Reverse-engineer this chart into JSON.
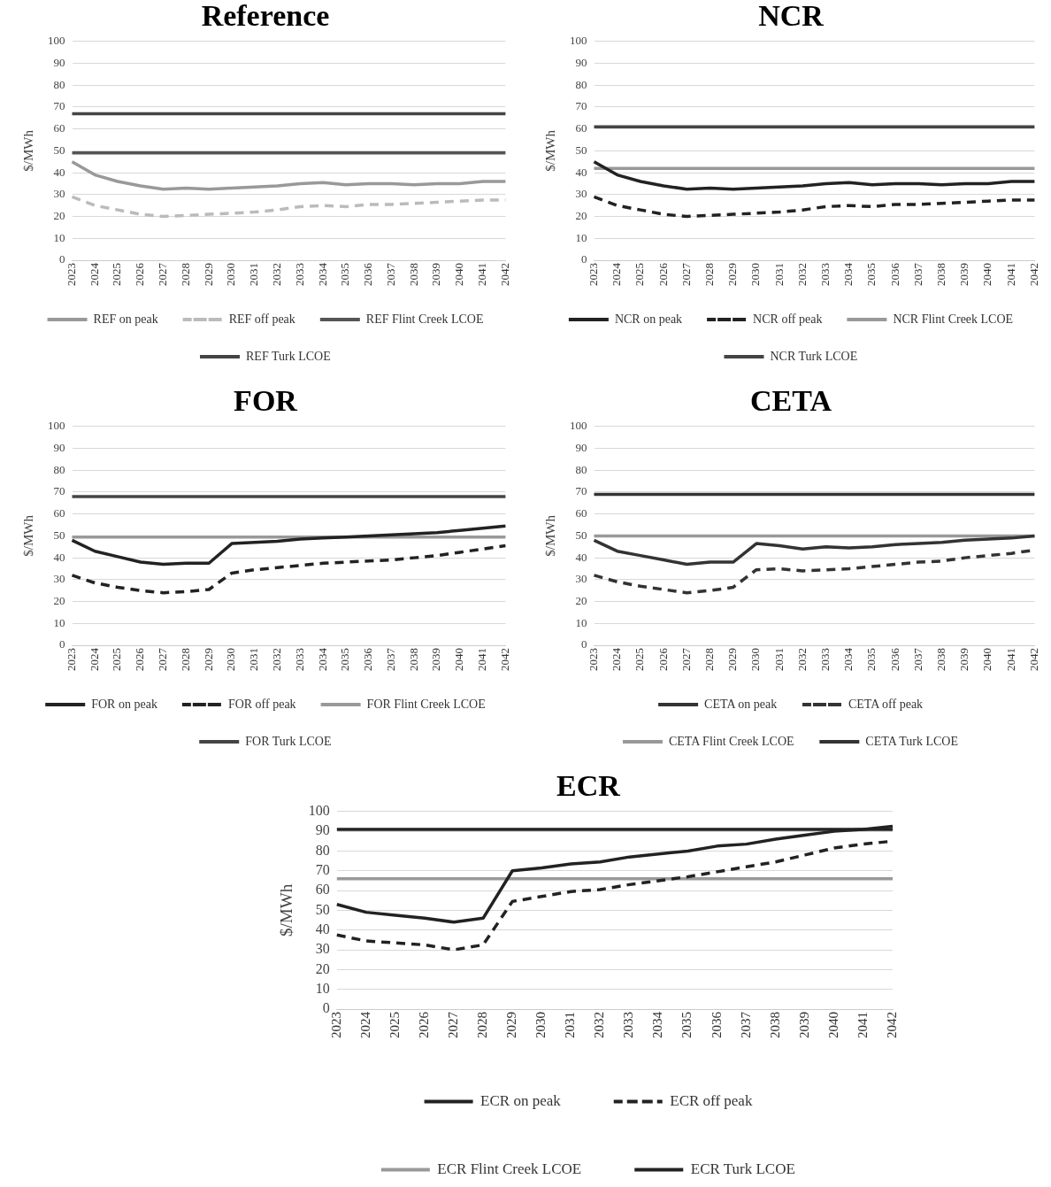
{
  "chart_data": [
    {
      "type": "line",
      "title": "Reference",
      "ylabel": "$/MWh",
      "categories": [
        "2023",
        "2024",
        "2025",
        "2026",
        "2027",
        "2028",
        "2029",
        "2030",
        "2031",
        "2032",
        "2033",
        "2034",
        "2035",
        "2036",
        "2037",
        "2038",
        "2039",
        "2040",
        "2041",
        "2042"
      ],
      "ylim": [
        0,
        100
      ],
      "yticks": [
        0,
        10,
        20,
        30,
        40,
        50,
        60,
        70,
        80,
        90,
        100
      ],
      "grid": "y",
      "legend": "bottom",
      "marker": "none",
      "series": [
        {
          "name": "REF on peak",
          "color": "#999999",
          "line_style": "solid",
          "values": [
            45,
            39,
            36,
            34,
            32.5,
            33,
            32.5,
            33,
            33.5,
            34,
            35,
            35.5,
            34.5,
            35,
            35,
            34.5,
            35,
            35,
            36,
            36
          ]
        },
        {
          "name": "REF off peak",
          "color": "#bbbbbb",
          "line_style": "dashed",
          "values": [
            29,
            25,
            23,
            21,
            20,
            20.5,
            21,
            21.5,
            22,
            23,
            24.5,
            25,
            24.5,
            25.5,
            25.5,
            26,
            26.5,
            27,
            27.5,
            27.5
          ]
        },
        {
          "name": "REF Flint Creek LCOE",
          "color": "#555555",
          "line_style": "solid",
          "values": [
            49,
            49,
            49,
            49,
            49,
            49,
            49,
            49,
            49,
            49,
            49,
            49,
            49,
            49,
            49,
            49,
            49,
            49,
            49,
            49
          ]
        },
        {
          "name": "REF Turk LCOE",
          "color": "#444444",
          "line_style": "solid",
          "values": [
            67,
            67,
            67,
            67,
            67,
            67,
            67,
            67,
            67,
            67,
            67,
            67,
            67,
            67,
            67,
            67,
            67,
            67,
            67,
            67
          ]
        }
      ]
    },
    {
      "type": "line",
      "title": "NCR",
      "ylabel": "$/MWh",
      "categories": [
        "2023",
        "2024",
        "2025",
        "2026",
        "2027",
        "2028",
        "2029",
        "2030",
        "2031",
        "2032",
        "2033",
        "2034",
        "2035",
        "2036",
        "2037",
        "2038",
        "2039",
        "2040",
        "2041",
        "2042"
      ],
      "ylim": [
        0,
        100
      ],
      "yticks": [
        0,
        10,
        20,
        30,
        40,
        50,
        60,
        70,
        80,
        90,
        100
      ],
      "grid": "y",
      "legend": "bottom",
      "marker": "none",
      "series": [
        {
          "name": "NCR on peak",
          "color": "#222222",
          "line_style": "solid",
          "values": [
            45,
            39,
            36,
            34,
            32.5,
            33,
            32.5,
            33,
            33.5,
            34,
            35,
            35.5,
            34.5,
            35,
            35,
            34.5,
            35,
            35,
            36,
            36
          ]
        },
        {
          "name": "NCR off peak",
          "color": "#222222",
          "line_style": "dashed",
          "values": [
            29,
            25,
            23,
            21,
            20,
            20.5,
            21,
            21.5,
            22,
            23,
            24.5,
            25,
            24.5,
            25.5,
            25.5,
            26,
            26.5,
            27,
            27.5,
            27.5
          ]
        },
        {
          "name": "NCR Flint Creek LCOE",
          "color": "#999999",
          "line_style": "solid",
          "values": [
            42,
            42,
            42,
            42,
            42,
            42,
            42,
            42,
            42,
            42,
            42,
            42,
            42,
            42,
            42,
            42,
            42,
            42,
            42,
            42
          ]
        },
        {
          "name": "NCR Turk LCOE",
          "color": "#444444",
          "line_style": "solid",
          "values": [
            61,
            61,
            61,
            61,
            61,
            61,
            61,
            61,
            61,
            61,
            61,
            61,
            61,
            61,
            61,
            61,
            61,
            61,
            61,
            61
          ]
        }
      ]
    },
    {
      "type": "line",
      "title": "FOR",
      "ylabel": "$/MWh",
      "categories": [
        "2023",
        "2024",
        "2025",
        "2026",
        "2027",
        "2028",
        "2029",
        "2030",
        "2031",
        "2032",
        "2033",
        "2034",
        "2035",
        "2036",
        "2037",
        "2038",
        "2039",
        "2040",
        "2041",
        "2042"
      ],
      "ylim": [
        0,
        100
      ],
      "yticks": [
        0,
        10,
        20,
        30,
        40,
        50,
        60,
        70,
        80,
        90,
        100
      ],
      "grid": "y",
      "legend": "bottom",
      "marker": "none",
      "series": [
        {
          "name": "FOR on peak",
          "color": "#222222",
          "line_style": "solid",
          "values": [
            48,
            43,
            40.5,
            38,
            37,
            37.5,
            37.5,
            46.5,
            47,
            47.5,
            48.5,
            49,
            49.5,
            50,
            50.5,
            51,
            51.5,
            52.5,
            53.5,
            54.5
          ]
        },
        {
          "name": "FOR off peak",
          "color": "#222222",
          "line_style": "dashed",
          "values": [
            32,
            28.5,
            26.5,
            25,
            24,
            24.5,
            25.5,
            33,
            34.5,
            35.5,
            36.5,
            37.5,
            38,
            38.5,
            39,
            40,
            41,
            42.5,
            44,
            45.5
          ]
        },
        {
          "name": "FOR Flint Creek LCOE",
          "color": "#999999",
          "line_style": "solid",
          "values": [
            49.5,
            49.5,
            49.5,
            49.5,
            49.5,
            49.5,
            49.5,
            49.5,
            49.5,
            49.5,
            49.5,
            49.5,
            49.5,
            49.5,
            49.5,
            49.5,
            49.5,
            49.5,
            49.5,
            49.5
          ]
        },
        {
          "name": "FOR Turk LCOE",
          "color": "#444444",
          "line_style": "solid",
          "values": [
            68,
            68,
            68,
            68,
            68,
            68,
            68,
            68,
            68,
            68,
            68,
            68,
            68,
            68,
            68,
            68,
            68,
            68,
            68,
            68
          ]
        }
      ]
    },
    {
      "type": "line",
      "title": "CETA",
      "ylabel": "$/MWh",
      "categories": [
        "2023",
        "2024",
        "2025",
        "2026",
        "2027",
        "2028",
        "2029",
        "2030",
        "2031",
        "2032",
        "2033",
        "2034",
        "2035",
        "2036",
        "2037",
        "2038",
        "2039",
        "2040",
        "2041",
        "2042"
      ],
      "ylim": [
        0,
        100
      ],
      "yticks": [
        0,
        10,
        20,
        30,
        40,
        50,
        60,
        70,
        80,
        90,
        100
      ],
      "grid": "y",
      "legend": "bottom",
      "marker": "none",
      "series": [
        {
          "name": "CETA on peak",
          "color": "#333333",
          "line_style": "solid",
          "values": [
            48,
            43,
            41,
            39,
            37,
            38,
            38,
            46.5,
            45.5,
            44,
            45,
            44.5,
            45,
            46,
            46.5,
            47,
            48,
            48.5,
            49,
            50
          ]
        },
        {
          "name": "CETA off peak",
          "color": "#333333",
          "line_style": "dashed",
          "values": [
            32,
            29,
            27,
            25.5,
            24,
            25,
            26.5,
            34.5,
            35,
            34,
            34.5,
            35,
            36,
            37,
            38,
            38.5,
            40,
            41,
            42,
            43.5
          ]
        },
        {
          "name": "CETA Flint Creek LCOE",
          "color": "#999999",
          "line_style": "solid",
          "values": [
            50,
            50,
            50,
            50,
            50,
            50,
            50,
            50,
            50,
            50,
            50,
            50,
            50,
            50,
            50,
            50,
            50,
            50,
            50,
            50
          ]
        },
        {
          "name": "CETA Turk LCOE",
          "color": "#333333",
          "line_style": "solid",
          "values": [
            69,
            69,
            69,
            69,
            69,
            69,
            69,
            69,
            69,
            69,
            69,
            69,
            69,
            69,
            69,
            69,
            69,
            69,
            69,
            69
          ]
        }
      ]
    },
    {
      "type": "line",
      "title": "ECR",
      "ylabel": "$/MWh",
      "categories": [
        "2023",
        "2024",
        "2025",
        "2026",
        "2027",
        "2028",
        "2029",
        "2030",
        "2031",
        "2032",
        "2033",
        "2034",
        "2035",
        "2036",
        "2037",
        "2038",
        "2039",
        "2040",
        "2041",
        "2042"
      ],
      "ylim": [
        0,
        100
      ],
      "yticks": [
        0,
        10,
        20,
        30,
        40,
        50,
        60,
        70,
        80,
        90,
        100
      ],
      "grid": "y",
      "legend": "bottom",
      "marker": "none",
      "series": [
        {
          "name": "ECR on peak",
          "color": "#222222",
          "line_style": "solid",
          "values": [
            53,
            49,
            47.5,
            46,
            44,
            46,
            70,
            71.5,
            73.5,
            74.5,
            77,
            78.5,
            80,
            82.5,
            83.5,
            86,
            88,
            90,
            91,
            92.5
          ]
        },
        {
          "name": "ECR off peak",
          "color": "#222222",
          "line_style": "dashed",
          "values": [
            37.5,
            34.5,
            33.5,
            32.5,
            30,
            32.5,
            54.5,
            57,
            59.5,
            60.5,
            63,
            65,
            67,
            69.5,
            72,
            74.5,
            78,
            81.5,
            83.5,
            85
          ]
        },
        {
          "name": "ECR Flint Creek LCOE",
          "color": "#999999",
          "line_style": "solid",
          "values": [
            66,
            66,
            66,
            66,
            66,
            66,
            66,
            66,
            66,
            66,
            66,
            66,
            66,
            66,
            66,
            66,
            66,
            66,
            66,
            66
          ]
        },
        {
          "name": "ECR Turk LCOE",
          "color": "#222222",
          "line_style": "solid",
          "values": [
            91,
            91,
            91,
            91,
            91,
            91,
            91,
            91,
            91,
            91,
            91,
            91,
            91,
            91,
            91,
            91,
            91,
            91,
            91,
            91
          ]
        }
      ]
    }
  ]
}
